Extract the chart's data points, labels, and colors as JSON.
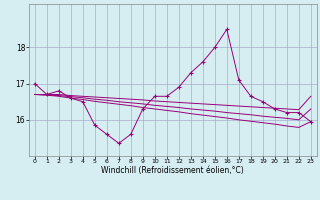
{
  "xlabel": "Windchill (Refroidissement éolien,°C)",
  "background_color": "#d6eef2",
  "grid_color": "#aaaacc",
  "line_color": "#990077",
  "x_hours": [
    0,
    1,
    2,
    3,
    4,
    5,
    6,
    7,
    8,
    9,
    10,
    11,
    12,
    13,
    14,
    15,
    16,
    17,
    18,
    19,
    20,
    21,
    22,
    23
  ],
  "y_main": [
    17.0,
    16.7,
    16.8,
    16.6,
    16.5,
    15.85,
    15.6,
    15.35,
    15.6,
    16.3,
    16.65,
    16.65,
    16.9,
    17.3,
    17.6,
    18.0,
    18.5,
    17.1,
    16.65,
    16.5,
    16.3,
    16.2,
    16.2,
    15.95
  ],
  "y_line2": [
    16.7,
    16.7,
    16.7,
    16.67,
    16.65,
    16.63,
    16.61,
    16.59,
    16.57,
    16.55,
    16.52,
    16.5,
    16.48,
    16.46,
    16.44,
    16.42,
    16.4,
    16.38,
    16.36,
    16.34,
    16.32,
    16.3,
    16.28,
    16.65
  ],
  "y_line3": [
    16.7,
    16.69,
    16.67,
    16.64,
    16.61,
    16.57,
    16.54,
    16.5,
    16.47,
    16.44,
    16.4,
    16.37,
    16.34,
    16.3,
    16.27,
    16.24,
    16.2,
    16.17,
    16.14,
    16.1,
    16.07,
    16.04,
    16.0,
    16.3
  ],
  "y_line4": [
    16.7,
    16.68,
    16.65,
    16.6,
    16.56,
    16.51,
    16.47,
    16.43,
    16.39,
    16.34,
    16.3,
    16.26,
    16.22,
    16.17,
    16.13,
    16.09,
    16.05,
    16.0,
    15.96,
    15.92,
    15.88,
    15.83,
    15.79,
    15.95
  ],
  "ylim": [
    15.0,
    19.2
  ],
  "yticks": [
    16,
    17,
    18
  ],
  "xlim": [
    -0.5,
    23.5
  ]
}
